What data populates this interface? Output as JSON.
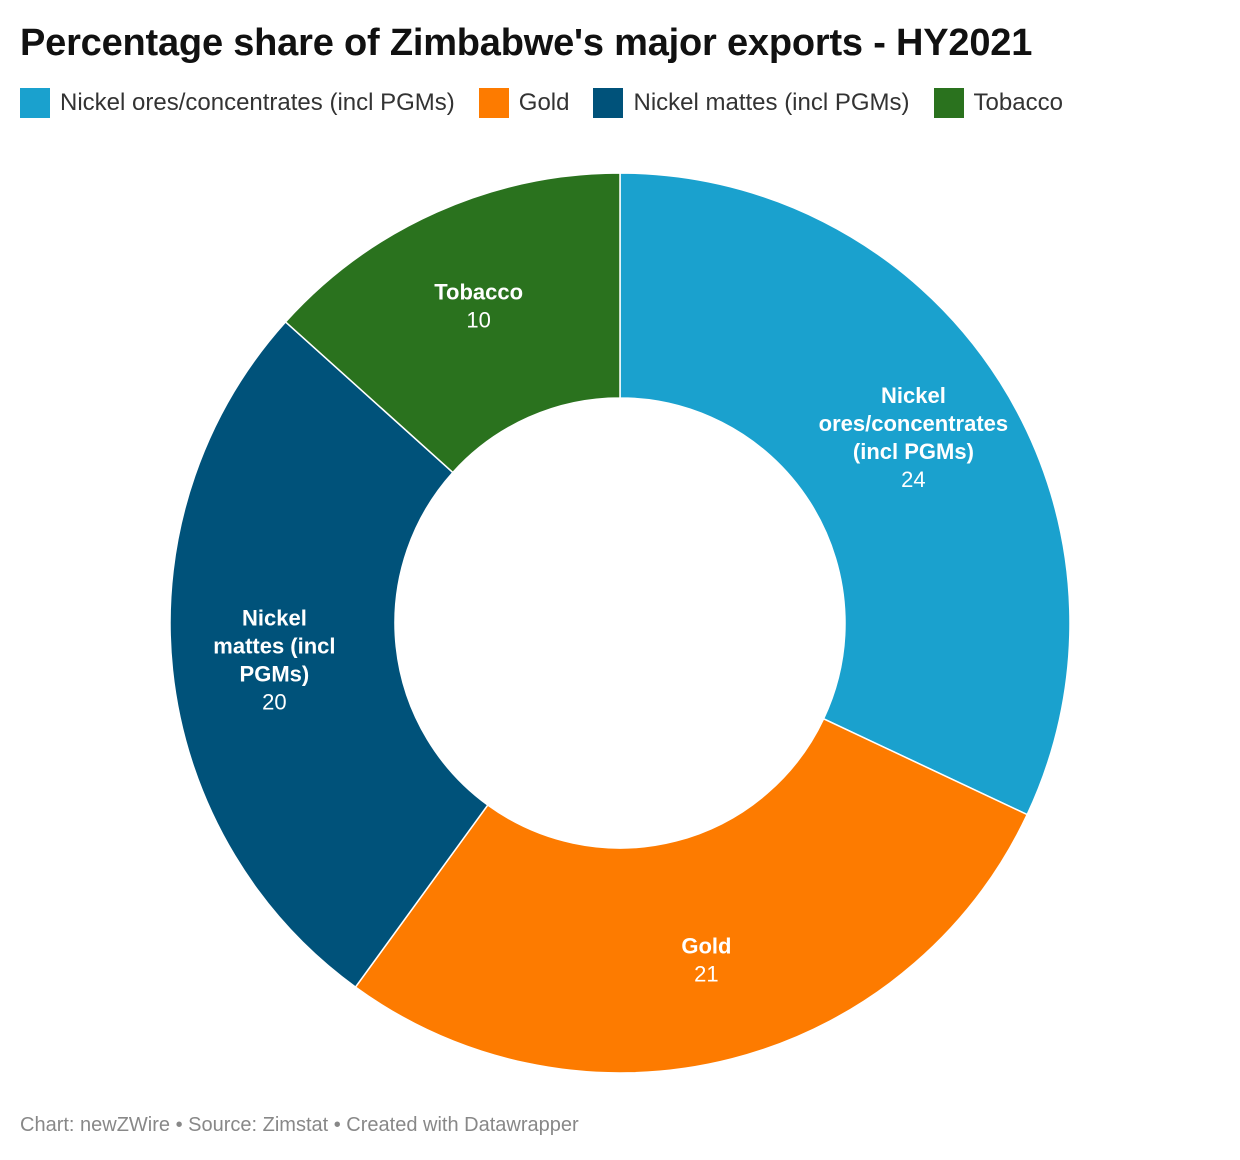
{
  "footer": "Chart: newZWire • Source: Zimstat • Created with Datawrapper",
  "chart_data": {
    "type": "pie",
    "variant": "donut",
    "title": "Percentage share of Zimbabwe's major exports - HY2021",
    "legend_position": "top-left",
    "slices": [
      {
        "name": "Nickel ores/concentrates (incl PGMs)",
        "label_lines": [
          "Nickel",
          "ores/concentrates",
          "(incl PGMs)"
        ],
        "value": 24,
        "color": "#1aa1ce"
      },
      {
        "name": "Gold",
        "label_lines": [
          "Gold"
        ],
        "value": 21,
        "color": "#fd7b00"
      },
      {
        "name": "Nickel mattes (incl PGMs)",
        "label_lines": [
          "Nickel",
          "mattes (incl",
          "PGMs)"
        ],
        "value": 20,
        "color": "#00527a"
      },
      {
        "name": "Tobacco",
        "label_lines": [
          "Tobacco"
        ],
        "value": 10,
        "color": "#2a721e"
      }
    ]
  }
}
